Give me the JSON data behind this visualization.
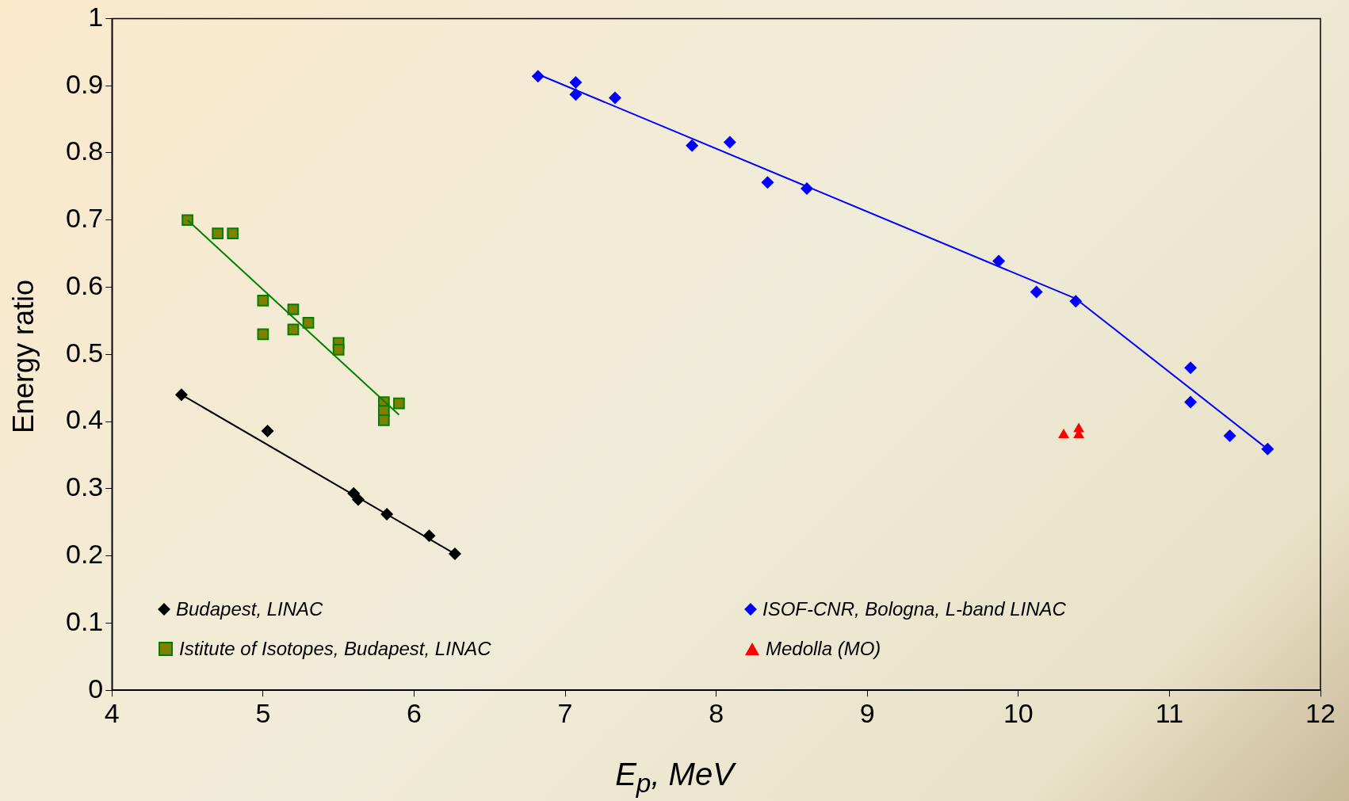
{
  "chart_data": {
    "type": "scatter",
    "xlabel": "E$_{p}$, MeV",
    "ylabel": "Energy ratio",
    "xlim": [
      4,
      12
    ],
    "xticks": [
      4,
      5,
      6,
      7,
      8,
      9,
      10,
      11,
      12
    ],
    "ylim": [
      0,
      1
    ],
    "yticks": [
      0,
      0.1,
      0.2,
      0.3,
      0.4,
      0.5,
      0.6,
      0.7,
      0.8,
      0.9,
      1
    ],
    "grid": false,
    "legend": "bottom",
    "series": [
      {
        "name": "Budapest, LINAC",
        "type": "scatter",
        "marker": "diamond",
        "color": "#000000",
        "x": [
          4.46,
          5.03,
          5.6,
          5.63,
          5.82,
          6.1,
          6.27
        ],
        "values": [
          0.44,
          0.386,
          0.293,
          0.284,
          0.262,
          0.23,
          0.203
        ]
      },
      {
        "name": "ISOF-CNR, Bologna, L-band LINAC",
        "type": "scatter",
        "marker": "diamond",
        "color": "#0000ff",
        "x": [
          6.82,
          7.07,
          7.07,
          7.33,
          7.84,
          8.09,
          8.34,
          8.6,
          9.87,
          10.12,
          10.38,
          11.14,
          11.14,
          11.4,
          11.65
        ],
        "values": [
          0.914,
          0.905,
          0.887,
          0.882,
          0.811,
          0.816,
          0.756,
          0.747,
          0.639,
          0.593,
          0.579,
          0.48,
          0.429,
          0.379,
          0.359
        ]
      },
      {
        "name": "Istitute of Isotopes, Budapest, LINAC",
        "type": "scatter",
        "marker": "square",
        "color": "#808000",
        "x": [
          4.5,
          4.7,
          4.8,
          5.0,
          5.0,
          5.2,
          5.2,
          5.3,
          5.5,
          5.5,
          5.8,
          5.8,
          5.8,
          5.9
        ],
        "values": [
          0.7,
          0.68,
          0.68,
          0.58,
          0.53,
          0.567,
          0.537,
          0.547,
          0.517,
          0.507,
          0.429,
          0.416,
          0.402,
          0.427
        ]
      },
      {
        "name": "Medolla (MO)",
        "type": "scatter",
        "marker": "triangle",
        "color": "#ff0000",
        "x": [
          10.3,
          10.4,
          10.4
        ],
        "values": [
          0.38,
          0.389,
          0.38
        ]
      },
      {
        "type": "line",
        "marker": "none",
        "color": "#000000",
        "x": [
          4.46,
          6.27
        ],
        "values": [
          0.44,
          0.203
        ]
      },
      {
        "type": "line",
        "marker": "none",
        "color": "#008000",
        "x": [
          4.5,
          5.9
        ],
        "values": [
          0.7,
          0.41
        ]
      },
      {
        "type": "line",
        "marker": "none",
        "color": "#0000ff",
        "x": [
          6.82,
          10.38,
          11.65
        ],
        "values": [
          0.917,
          0.583,
          0.359
        ]
      }
    ]
  }
}
